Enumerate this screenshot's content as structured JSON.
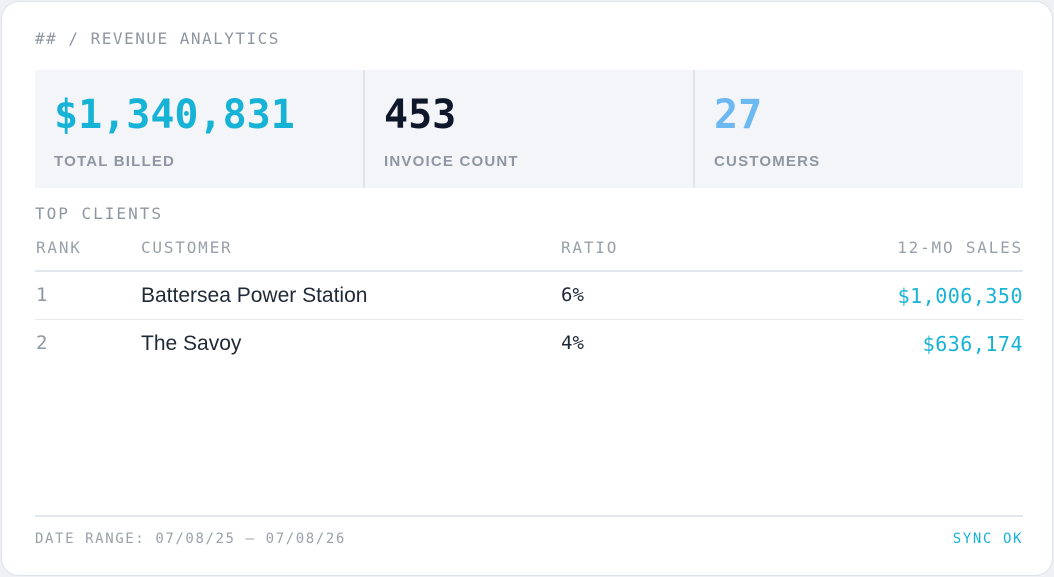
{
  "header": {
    "title": "## / REVENUE ANALYTICS"
  },
  "stats": [
    {
      "value": "$1,340,831",
      "label": "TOTAL BILLED",
      "color": "#17b3d6"
    },
    {
      "value": "453",
      "label": "INVOICE COUNT",
      "color": "#0f172a"
    },
    {
      "value": "27",
      "label": "CUSTOMERS",
      "color": "#6cb8f0"
    }
  ],
  "top_clients": {
    "title": "TOP CLIENTS",
    "columns": {
      "rank": "RANK",
      "customer": "CUSTOMER",
      "ratio": "RATIO",
      "sales": "12-MO SALES"
    },
    "rows": [
      {
        "rank": "1",
        "customer": "Battersea Power Station",
        "ratio": "6%",
        "sales": "$1,006,350"
      },
      {
        "rank": "2",
        "customer": "The Savoy",
        "ratio": "4%",
        "sales": "$636,174"
      }
    ]
  },
  "footer": {
    "date_range": "DATE RANGE: 07/08/25 — 07/08/26",
    "status": "SYNC OK"
  },
  "colors": {
    "accent": "#17b3d6",
    "muted": "#8f96a1"
  }
}
